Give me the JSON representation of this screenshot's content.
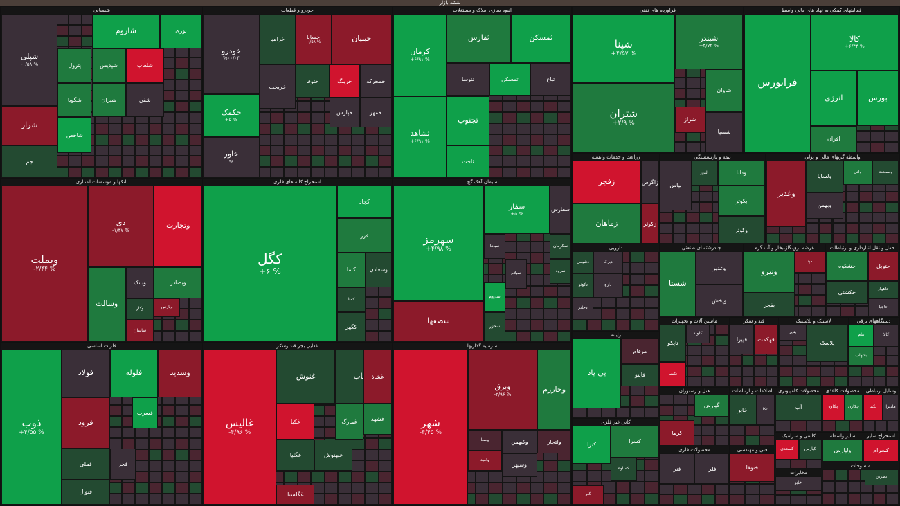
{
  "header_title": "نقشه بازار",
  "colors": {
    "up_strong": "#0fa04a",
    "up_mid": "#1f7a3e",
    "up_weak": "#234a31",
    "neutral": "#3a2f38",
    "down_weak": "#4a2530",
    "down_mid": "#8c1a2a",
    "down_strong": "#d0142e"
  },
  "chart_data": {
    "type": "treemap",
    "sectors": [
      {
        "name": "شیمیایی",
        "tiles": [
          {
            "n": "شپلی",
            "c": "-۰/۵۸ %",
            "k": "neutral"
          },
          {
            "n": "شگویا",
            "c": "",
            "k": "up_mid"
          },
          {
            "n": "شاروم",
            "c": "",
            "k": "up_strong"
          },
          {
            "n": "نوری",
            "c": "",
            "k": "up_strong"
          },
          {
            "n": "شیران",
            "c": "",
            "k": "up_mid"
          },
          {
            "n": "شفن",
            "c": "",
            "k": "neutral"
          },
          {
            "n": "شلعاب",
            "c": "",
            "k": "down_strong"
          },
          {
            "n": "پترول",
            "c": "",
            "k": "up_mid"
          },
          {
            "n": "شراز",
            "c": "",
            "k": "down_mid"
          },
          {
            "n": "شاخص",
            "c": "",
            "k": "up_strong"
          },
          {
            "n": "شپدیس",
            "c": "",
            "k": "up_mid"
          },
          {
            "n": "جم",
            "c": "",
            "k": "up_weak"
          }
        ]
      },
      {
        "name": "خودرو و قطعات",
        "tiles": [
          {
            "n": "خودرو",
            "c": "%۰۰/۰۴",
            "k": "neutral"
          },
          {
            "n": "خزامیا",
            "c": "",
            "k": "up_weak"
          },
          {
            "n": "خساپا",
            "c": "-۰/۵۸ %",
            "k": "down_mid"
          },
          {
            "n": "خبنیان",
            "c": "",
            "k": "down_mid"
          },
          {
            "n": "خکمک",
            "c": "+۵ %",
            "k": "up_strong"
          },
          {
            "n": "خاور",
            "c": "%",
            "k": "neutral"
          },
          {
            "n": "خریخت",
            "c": "",
            "k": "neutral"
          },
          {
            "n": "ختوقا",
            "c": "",
            "k": "up_weak"
          },
          {
            "n": "خرینگ",
            "c": "",
            "k": "down_strong"
          },
          {
            "n": "خمحرکه",
            "c": "",
            "k": "neutral"
          },
          {
            "n": "خپارس",
            "c": "",
            "k": "neutral"
          },
          {
            "n": "خمهر",
            "c": "",
            "k": "neutral"
          }
        ]
      },
      {
        "name": "انبوه سازی املاک و مستغلات",
        "tiles": [
          {
            "n": "کرمان",
            "c": "+۶/۹۱ %",
            "k": "up_strong"
          },
          {
            "n": "ثفارس",
            "c": "",
            "k": "up_mid"
          },
          {
            "n": "ثمسکن",
            "c": "",
            "k": "up_strong"
          },
          {
            "n": "ثشاهد",
            "c": "+۶/۹۱ %",
            "k": "up_strong"
          },
          {
            "n": "ثنوسا",
            "c": "",
            "k": "neutral"
          },
          {
            "n": "ثمسکن",
            "c": "",
            "k": "up_strong"
          },
          {
            "n": "ثجنوب",
            "c": "",
            "k": "up_strong"
          },
          {
            "n": "ثاخت",
            "c": "",
            "k": "up_strong"
          },
          {
            "n": "ثباغ",
            "c": "",
            "k": "neutral"
          }
        ]
      },
      {
        "name": "فراورده های نفتی",
        "tiles": [
          {
            "n": "شپنا",
            "c": "+۴/۵۷ %",
            "k": "up_strong"
          },
          {
            "n": "شبندر",
            "c": "+۳/۷۲ %",
            "k": "up_mid"
          },
          {
            "n": "شتران",
            "c": "+۲/۹ %",
            "k": "up_mid"
          },
          {
            "n": "شاوان",
            "c": "",
            "k": "up_mid"
          },
          {
            "n": "شسپا",
            "c": "",
            "k": "neutral"
          },
          {
            "n": "شراز",
            "c": "",
            "k": "down_mid"
          }
        ]
      },
      {
        "name": "فعالیتهای کمکی به نهاد های مالی واسط",
        "tiles": [
          {
            "n": "فرابورس",
            "c": "",
            "k": "up_strong"
          },
          {
            "n": "کالا",
            "c": "+۶/۴۴ %",
            "k": "up_strong"
          },
          {
            "n": "انرژی",
            "c": "",
            "k": "up_strong"
          },
          {
            "n": "بورس",
            "c": "",
            "k": "up_strong"
          },
          {
            "n": "افران",
            "c": "",
            "k": "up_mid"
          }
        ]
      },
      {
        "name": "بانکها و موسسات اعتباری",
        "tiles": [
          {
            "n": "وبملت",
            "c": "-۲/۴۴ %",
            "k": "down_mid"
          },
          {
            "n": "دی",
            "c": "-۱/۴۷ %",
            "k": "down_mid"
          },
          {
            "n": "وتجارت",
            "c": "",
            "k": "down_strong"
          },
          {
            "n": "وبصادر",
            "c": "",
            "k": "up_mid"
          },
          {
            "n": "وپارس",
            "c": "",
            "k": "down_mid"
          },
          {
            "n": "وسالت",
            "c": "",
            "k": "up_mid"
          },
          {
            "n": "وکار",
            "c": "",
            "k": "up_weak"
          },
          {
            "n": "ساسان",
            "c": "",
            "k": "down_mid"
          },
          {
            "n": "وبانک",
            "c": "",
            "k": "neutral"
          }
        ]
      },
      {
        "name": "استخراج کانه های فلزی",
        "tiles": [
          {
            "n": "کگل",
            "c": "+۶ %",
            "k": "up_strong"
          },
          {
            "n": "کچاد",
            "c": "",
            "k": "up_strong"
          },
          {
            "n": "فزر",
            "c": "",
            "k": "up_mid"
          },
          {
            "n": "کاما",
            "c": "",
            "k": "up_mid"
          },
          {
            "n": "وسعادن",
            "c": "",
            "k": "up_weak"
          },
          {
            "n": "کمنا",
            "c": "",
            "k": "up_weak"
          },
          {
            "n": "کگهر",
            "c": "",
            "k": "up_weak"
          }
        ]
      },
      {
        "name": "سیمان آهک گچ",
        "tiles": [
          {
            "n": "سهرمز",
            "c": "+۴/۹۸ %",
            "k": "up_strong"
          },
          {
            "n": "سفار",
            "c": "+۵ %",
            "k": "up_strong"
          },
          {
            "n": "سفارس",
            "c": "",
            "k": "neutral"
          },
          {
            "n": "سکرمان",
            "c": "",
            "k": "up_weak"
          },
          {
            "n": "سصفها",
            "c": "",
            "k": "down_mid"
          },
          {
            "n": "ساروم",
            "c": "",
            "k": "up_strong"
          },
          {
            "n": "سیلام",
            "c": "",
            "k": "neutral"
          },
          {
            "n": "سرود",
            "c": "",
            "k": "up_weak"
          },
          {
            "n": "سخزر",
            "c": "",
            "k": "up_weak"
          },
          {
            "n": "سباها",
            "c": "",
            "k": "neutral"
          }
        ]
      },
      {
        "name": "فلزات اساسی",
        "tiles": [
          {
            "n": "ذوب",
            "c": "+۴/۵۵ %",
            "k": "up_strong"
          },
          {
            "n": "فولاد",
            "c": "",
            "k": "neutral"
          },
          {
            "n": "فلوله",
            "c": "",
            "k": "up_strong"
          },
          {
            "n": "وسدید",
            "c": "",
            "k": "down_mid"
          },
          {
            "n": "فرود",
            "c": "",
            "k": "down_mid"
          },
          {
            "n": "فملی",
            "c": "",
            "k": "up_weak"
          },
          {
            "n": "فسرب",
            "c": "",
            "k": "up_strong"
          },
          {
            "n": "فجر",
            "c": "",
            "k": "neutral"
          },
          {
            "n": "فنوال",
            "c": "",
            "k": "up_weak"
          }
        ]
      },
      {
        "name": "غذایی بجز قند وشکر",
        "tiles": [
          {
            "n": "غالیس",
            "c": "-۴/۹۶ %",
            "k": "down_strong"
          },
          {
            "n": "غنوش",
            "c": "",
            "k": "up_weak"
          },
          {
            "n": "غپیناب",
            "c": "",
            "k": "up_weak"
          },
          {
            "n": "غشاذ",
            "c": "",
            "k": "down_mid"
          },
          {
            "n": "غکبا",
            "c": "",
            "k": "down_strong"
          },
          {
            "n": "غمارگ",
            "c": "",
            "k": "up_mid"
          },
          {
            "n": "غگلپا",
            "c": "",
            "k": "up_weak"
          },
          {
            "n": "غشهد",
            "c": "",
            "k": "up_mid"
          },
          {
            "n": "غبهنوش",
            "c": "",
            "k": "up_weak"
          },
          {
            "n": "غگلستا",
            "c": "",
            "k": "down_mid"
          }
        ]
      },
      {
        "name": "سرمایه گذاریها",
        "tiles": [
          {
            "n": "شهر",
            "c": "-۴/۴۵ %",
            "k": "down_strong"
          },
          {
            "n": "وبرق",
            "c": "-۲/۹۶ %",
            "k": "down_mid"
          },
          {
            "n": "وخارزم",
            "c": "",
            "k": "up_mid"
          },
          {
            "n": "وصنا",
            "c": "",
            "k": "down_weak"
          },
          {
            "n": "وکبهمن",
            "c": "",
            "k": "neutral"
          },
          {
            "n": "وامید",
            "c": "",
            "k": "down_mid"
          },
          {
            "n": "وسپهر",
            "c": "",
            "k": "neutral"
          },
          {
            "n": "ولتجار",
            "c": "",
            "k": "down_weak"
          }
        ]
      },
      {
        "name": "زراعت و خدمات وابسته",
        "tiles": [
          {
            "n": "زفجر",
            "c": "",
            "k": "down_strong"
          },
          {
            "n": "زماهان",
            "c": "",
            "k": "up_mid"
          },
          {
            "n": "زاگرس",
            "c": "",
            "k": "neutral"
          },
          {
            "n": "زکوثر",
            "c": "",
            "k": "down_mid"
          }
        ]
      },
      {
        "name": "بیمه و بازنشستگی",
        "tiles": [
          {
            "n": "بپاس",
            "c": "",
            "k": "neutral"
          },
          {
            "n": "البرز",
            "c": "",
            "k": "up_weak"
          },
          {
            "n": "ودانا",
            "c": "",
            "k": "up_mid"
          },
          {
            "n": "بکوثر",
            "c": "",
            "k": "up_mid"
          },
          {
            "n": "وکوثر",
            "c": "",
            "k": "up_weak"
          }
        ]
      },
      {
        "name": "واسطه گریهای مالی و پولی",
        "tiles": [
          {
            "n": "وغدیر",
            "c": "",
            "k": "down_mid"
          },
          {
            "n": "ولساپا",
            "c": "",
            "k": "up_weak"
          },
          {
            "n": "واتی",
            "c": "",
            "k": "up_mid"
          },
          {
            "n": "وبهمن",
            "c": "",
            "k": "neutral"
          },
          {
            "n": "ولصنعت",
            "c": "",
            "k": "up_weak"
          }
        ]
      },
      {
        "name": "دارویی",
        "tiles": [
          {
            "n": "دبرک",
            "c": "",
            "k": "neutral"
          },
          {
            "n": "دشیمی",
            "c": "",
            "k": "up_weak"
          },
          {
            "n": "دکوثر",
            "c": "",
            "k": "up_weak"
          },
          {
            "n": "دجابر",
            "c": "",
            "k": "neutral"
          },
          {
            "n": "دارو",
            "c": "",
            "k": "neutral"
          }
        ]
      },
      {
        "name": "چندرشته ای صنعتی",
        "tiles": [
          {
            "n": "شستا",
            "c": "",
            "k": "up_mid"
          },
          {
            "n": "وغدیر",
            "c": "",
            "k": "neutral"
          },
          {
            "n": "وپخش",
            "c": "",
            "k": "neutral"
          }
        ]
      },
      {
        "name": "عرضه برق،گاز،بخار و آب گرم",
        "tiles": [
          {
            "n": "ونیرو",
            "c": "",
            "k": "up_mid"
          },
          {
            "n": "بمپنا",
            "c": "",
            "k": "down_mid"
          },
          {
            "n": "بفجر",
            "c": "",
            "k": "up_weak"
          }
        ]
      },
      {
        "name": "حمل و نقل انبارداری و ارتباطات",
        "tiles": [
          {
            "n": "حشکوه",
            "c": "",
            "k": "up_mid"
          },
          {
            "n": "حتوبل",
            "c": "",
            "k": "down_mid"
          },
          {
            "n": "حکشتی",
            "c": "",
            "k": "up_weak"
          },
          {
            "n": "حاهواز",
            "c": "",
            "k": "up_weak"
          },
          {
            "n": "حاجیا",
            "c": "",
            "k": "neutral"
          }
        ]
      },
      {
        "name": "رایانه",
        "tiles": [
          {
            "n": "پی پاد",
            "c": "",
            "k": "up_strong"
          },
          {
            "n": "مرقام",
            "c": "",
            "k": "down_weak"
          },
          {
            "n": "فاینو",
            "c": "",
            "k": "up_weak"
          }
        ]
      },
      {
        "name": "ماشین آلات و تجهیزات",
        "tiles": [
          {
            "n": "تکشا",
            "c": "",
            "k": "down_strong"
          },
          {
            "n": "تاپکو",
            "c": "",
            "k": "up_weak"
          },
          {
            "n": "کلوند",
            "c": "",
            "k": "neutral"
          }
        ]
      },
      {
        "name": "قند و شکر",
        "tiles": [
          {
            "n": "قپیرا",
            "c": "",
            "k": "neutral"
          },
          {
            "n": "قهکمت",
            "c": "",
            "k": "down_mid"
          }
        ]
      },
      {
        "name": "لاستیک و پلاستیک",
        "tiles": [
          {
            "n": "پتایر",
            "c": "",
            "k": "neutral"
          },
          {
            "n": "پلاسک",
            "c": "",
            "k": "up_weak"
          }
        ]
      },
      {
        "name": "دستگاههای برقی",
        "tiles": [
          {
            "n": "بنام",
            "c": "",
            "k": "up_strong"
          },
          {
            "n": "بشهاب",
            "c": "",
            "k": "up_mid"
          },
          {
            "n": "کالا",
            "c": "",
            "k": "neutral"
          }
        ]
      },
      {
        "name": "کانی غیر فلزی",
        "tiles": [
          {
            "n": "کترا",
            "c": "",
            "k": "up_strong"
          },
          {
            "n": "کسرا",
            "c": "",
            "k": "up_mid"
          },
          {
            "n": "کساوه",
            "c": "",
            "k": "up_weak"
          },
          {
            "n": "کلر",
            "c": "",
            "k": "down_mid"
          }
        ]
      },
      {
        "name": "هتل و رستوران",
        "tiles": [
          {
            "n": "گپارس",
            "c": "",
            "k": "up_mid"
          },
          {
            "n": "کرما",
            "c": "",
            "k": "down_mid"
          }
        ]
      },
      {
        "name": "اطلاعات و ارتباطات",
        "tiles": [
          {
            "n": "اخابر",
            "c": "",
            "k": "up_weak"
          },
          {
            "n": "اتکا",
            "c": "",
            "k": "neutral"
          }
        ]
      },
      {
        "name": "محصولات کامپیوتری",
        "tiles": [
          {
            "n": "آپ",
            "c": "",
            "k": "up_weak"
          }
        ]
      },
      {
        "name": "محصولات کاغذی",
        "tiles": [
          {
            "n": "چکاوه",
            "c": "",
            "k": "down_strong"
          },
          {
            "n": "چکارن",
            "c": "",
            "k": "up_mid"
          }
        ]
      },
      {
        "name": "وسایل ارتباطی",
        "tiles": [
          {
            "n": "لکما",
            "c": "",
            "k": "down_strong"
          },
          {
            "n": "مادیرا",
            "c": "",
            "k": "neutral"
          }
        ]
      },
      {
        "name": "سایر واسطه",
        "tiles": [
          {
            "n": "ولپارس",
            "c": "",
            "k": "up_mid"
          }
        ]
      },
      {
        "name": "استخراج سایر",
        "tiles": [
          {
            "n": "کسرام",
            "c": "",
            "k": "down_strong"
          }
        ]
      },
      {
        "name": "محصولات فلزی",
        "tiles": [
          {
            "n": "فنر",
            "c": "",
            "k": "neutral"
          },
          {
            "n": "فلرا",
            "c": "",
            "k": "neutral"
          }
        ]
      },
      {
        "name": "کاشی و سرامیک",
        "tiles": [
          {
            "n": "کسعدی",
            "c": "",
            "k": "down_strong"
          },
          {
            "n": "کپارس",
            "c": "",
            "k": "up_weak"
          }
        ]
      },
      {
        "name": "فنی و مهندسی",
        "tiles": [
          {
            "n": "خنوفا",
            "c": "",
            "k": "down_mid"
          }
        ]
      },
      {
        "name": "مخابرات",
        "tiles": [
          {
            "n": "اخابر",
            "c": "",
            "k": "neutral"
          }
        ]
      },
      {
        "name": "منسوجات",
        "tiles": [
          {
            "n": "نطرین",
            "c": "",
            "k": "up_weak"
          }
        ]
      }
    ]
  }
}
